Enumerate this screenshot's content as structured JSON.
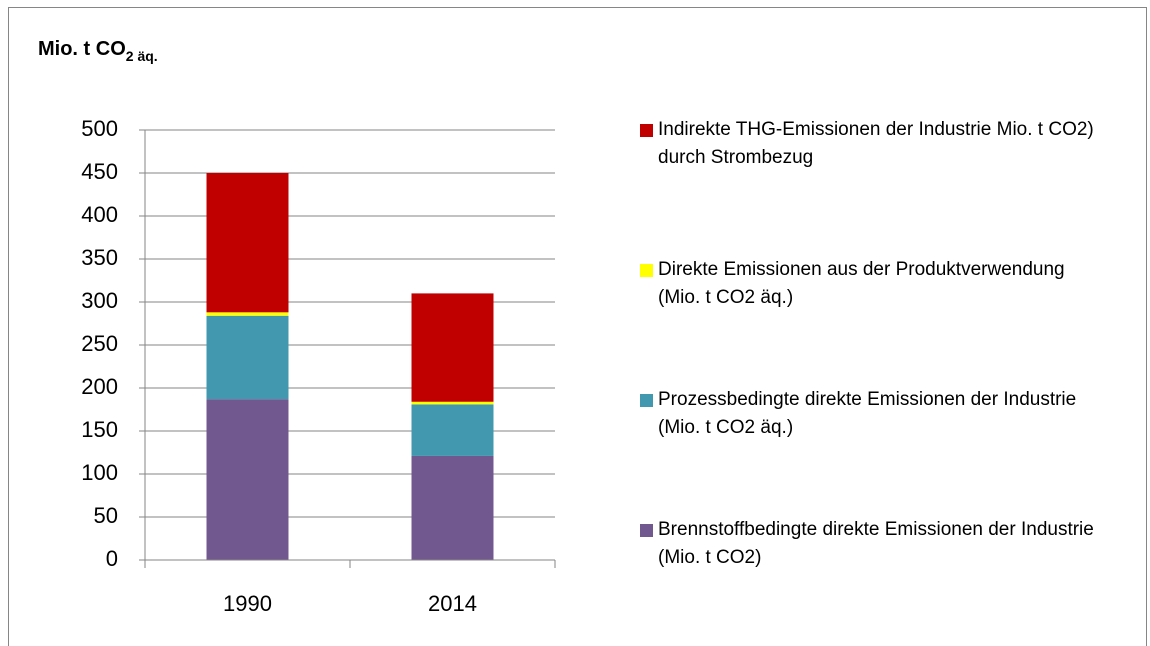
{
  "chart_data": {
    "type": "stacked_bar",
    "title": "Mio. t  CO",
    "title_subscript": "2 äq.",
    "categories": [
      "1990",
      "2014"
    ],
    "series": [
      {
        "name": "Brennstoffbedingte direkte Emissionen der Industrie (Mio. t CO2)",
        "color": "#71588f",
        "values": [
          187,
          121
        ]
      },
      {
        "name": "Prozessbedingte direkte Emissionen der Industrie (Mio. t CO2 äq.)",
        "color": "#4198af",
        "values": [
          97,
          60
        ]
      },
      {
        "name": "Direkte Emissionen aus der Produktverwendung (Mio. t CO2 äq.)",
        "color": "#ffff00",
        "values": [
          4,
          3
        ]
      },
      {
        "name": "Indirekte THG-Emissionen der Industrie Mio. t CO2) durch Strombezug",
        "color": "#c00000",
        "values": [
          162,
          126
        ]
      }
    ],
    "ylim": [
      0,
      500
    ],
    "yticks": [
      0,
      50,
      100,
      150,
      200,
      250,
      300,
      350,
      400,
      450,
      500
    ],
    "grid": true,
    "legend": "right"
  }
}
